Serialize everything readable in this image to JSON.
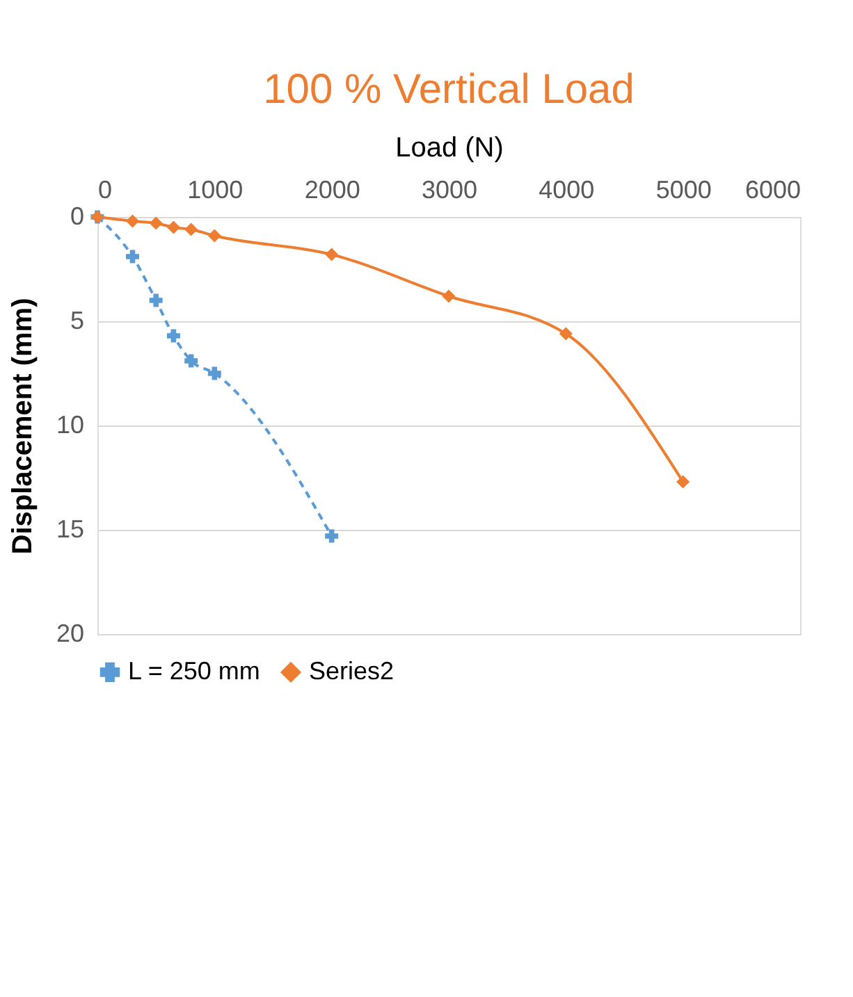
{
  "chart_data": {
    "type": "line",
    "title": "100 % Vertical Load",
    "xlabel": "Load (N)",
    "ylabel": "Displacement (mm)",
    "xlim": [
      0,
      6000
    ],
    "xticks": [
      0,
      1000,
      2000,
      3000,
      4000,
      5000,
      6000
    ],
    "ylim": [
      20,
      0
    ],
    "yticks": [
      0,
      5,
      10,
      15,
      20
    ],
    "grid": "y",
    "legend": "bottom",
    "series": [
      {
        "name": "L = 250 mm",
        "color": "#5b9bd5",
        "marker": "cross",
        "line_style": "dashed",
        "x": [
          0,
          300,
          500,
          650,
          800,
          1000,
          2000
        ],
        "values": [
          0,
          1.9,
          4.0,
          5.7,
          6.9,
          7.5,
          15.3
        ]
      },
      {
        "name": "Series2",
        "color": "#ed7d31",
        "marker": "diamond",
        "line_style": "solid",
        "x": [
          0,
          300,
          500,
          650,
          800,
          1000,
          2000,
          3000,
          4000,
          5000
        ],
        "values": [
          0,
          0.2,
          0.3,
          0.5,
          0.6,
          0.9,
          1.8,
          3.8,
          5.6,
          12.7
        ]
      }
    ]
  }
}
